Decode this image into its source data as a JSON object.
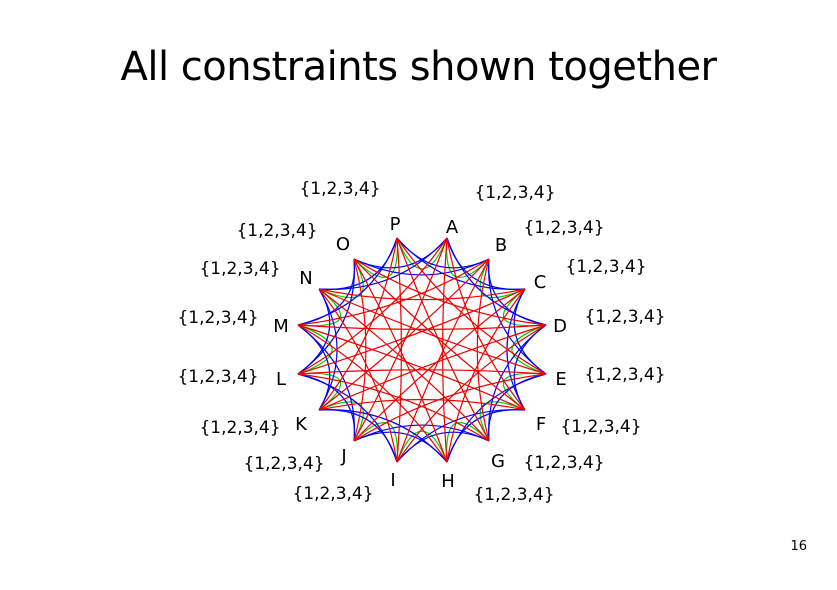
{
  "slide": {
    "title": "All constraints shown together",
    "page_number": "16"
  },
  "graph": {
    "nodes": [
      {
        "id": "A",
        "domain": "{1,2,3,4}"
      },
      {
        "id": "B",
        "domain": "{1,2,3,4}"
      },
      {
        "id": "C",
        "domain": "{1,2,3,4}"
      },
      {
        "id": "D",
        "domain": "{1,2,3,4}"
      },
      {
        "id": "E",
        "domain": "{1,2,3,4}"
      },
      {
        "id": "F",
        "domain": "{1,2,3,4}"
      },
      {
        "id": "G",
        "domain": "{1,2,3,4}"
      },
      {
        "id": "H",
        "domain": "{1,2,3,4}"
      },
      {
        "id": "I",
        "domain": "{1,2,3,4}"
      },
      {
        "id": "J",
        "domain": "{1,2,3,4}"
      },
      {
        "id": "K",
        "domain": "{1,2,3,4}"
      },
      {
        "id": "L",
        "domain": "{1,2,3,4}"
      },
      {
        "id": "M",
        "domain": "{1,2,3,4}"
      },
      {
        "id": "N",
        "domain": "{1,2,3,4}"
      },
      {
        "id": "O",
        "domain": "{1,2,3,4}"
      },
      {
        "id": "P",
        "domain": "{1,2,3,4}"
      }
    ],
    "edge_groups": [
      {
        "color": "#00cc00",
        "skip": 1
      },
      {
        "color": "#0000ee",
        "skip": 2
      },
      {
        "color": "#0000ee",
        "skip": 3
      },
      {
        "color": "#ee0000",
        "skip": 5
      },
      {
        "color": "#ee0000",
        "skip": 7
      }
    ]
  }
}
